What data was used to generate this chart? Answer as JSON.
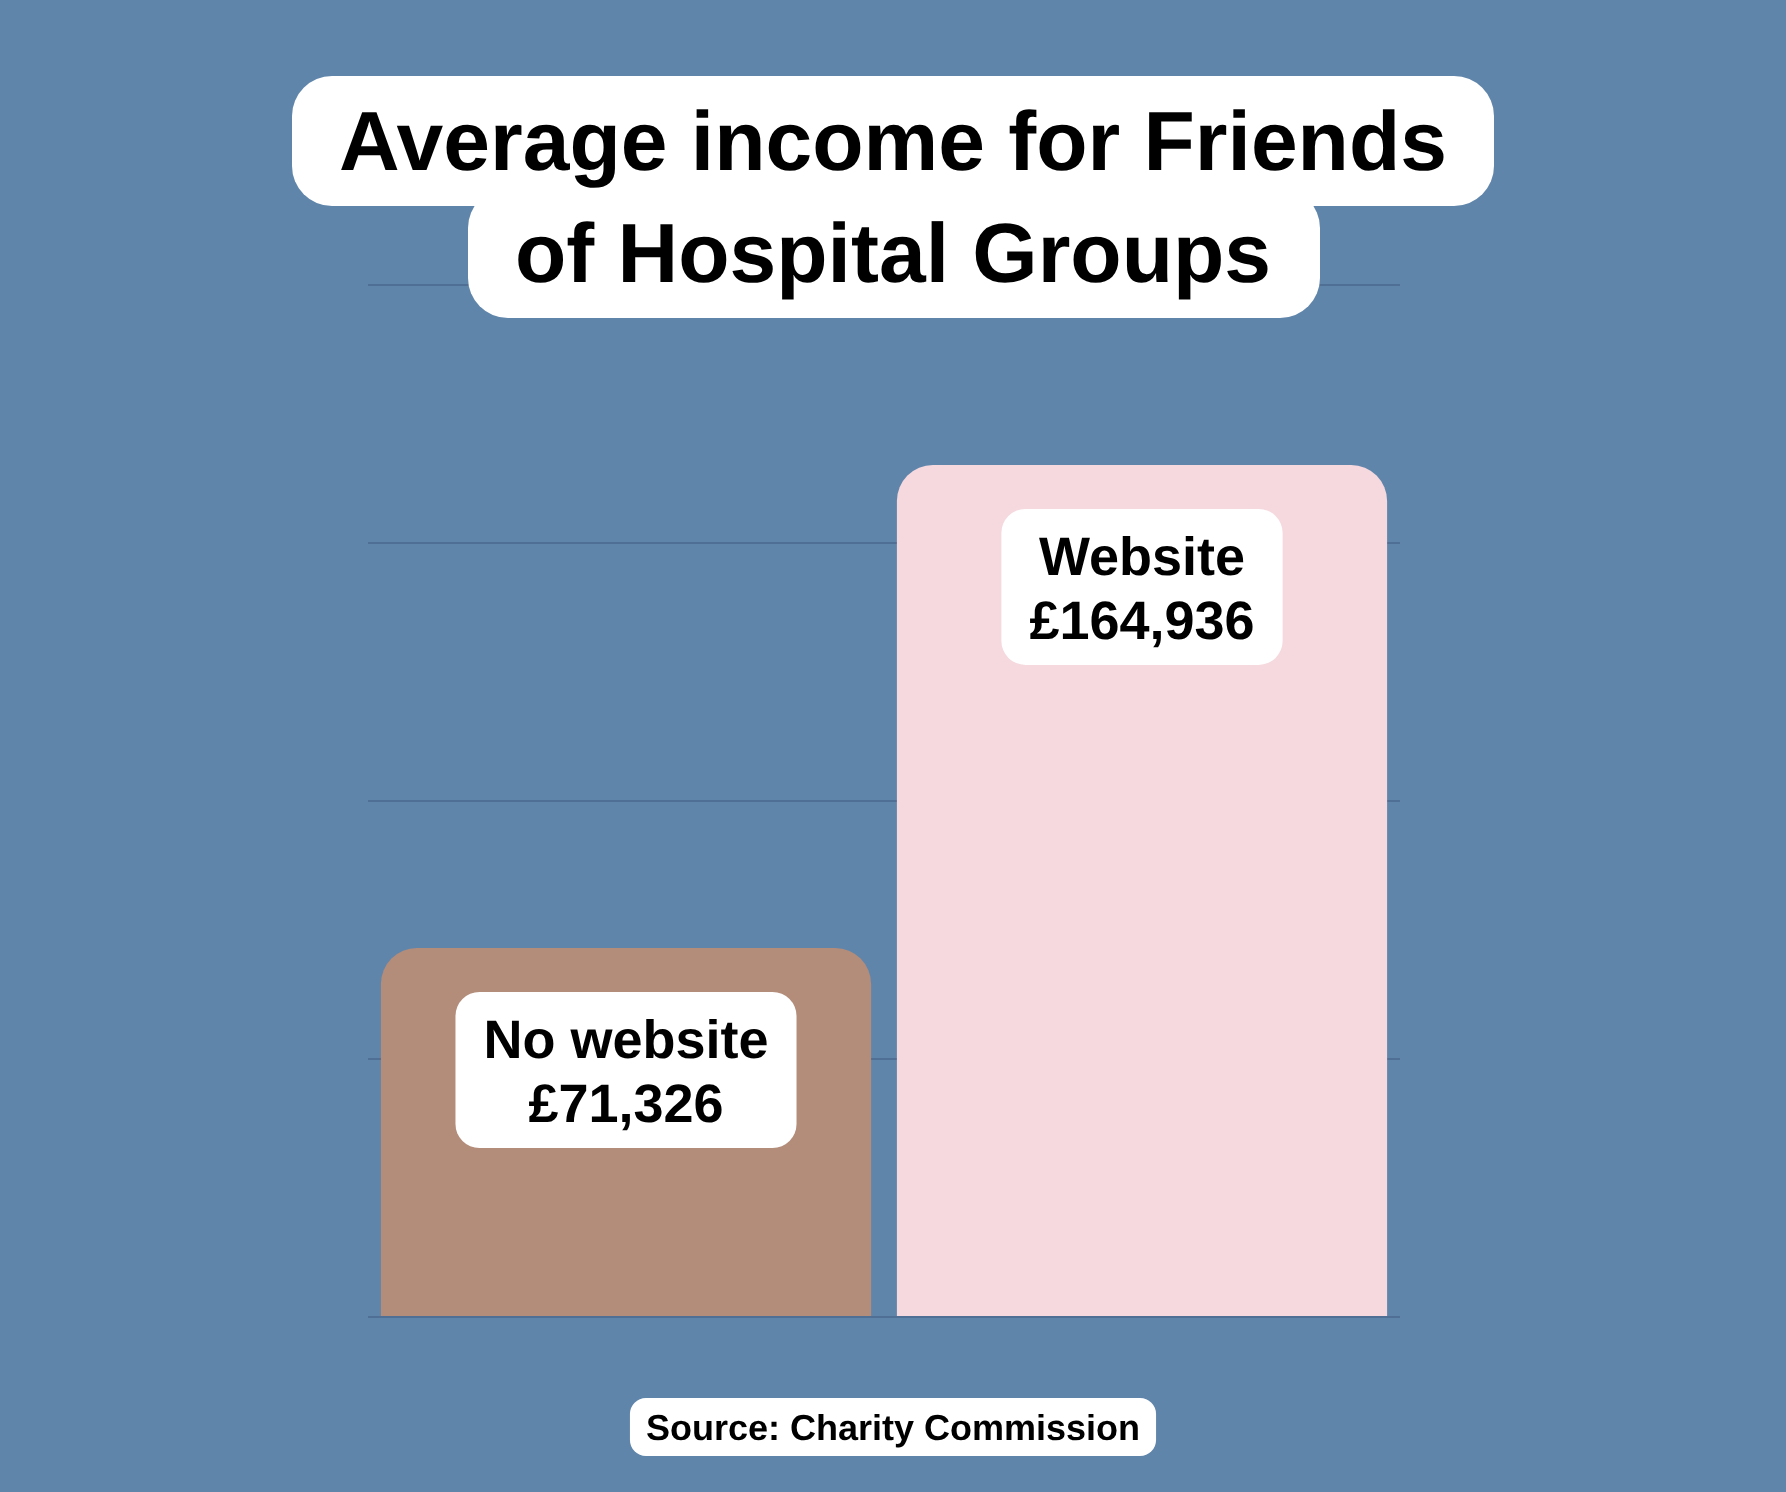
{
  "chart_data": {
    "type": "bar",
    "title": "Average income for Friends of Hospital Groups",
    "categories": [
      "No website",
      "Website"
    ],
    "values": [
      71326,
      164936
    ],
    "colors": [
      "#b38c7a",
      "#f5d9de"
    ],
    "value_labels": [
      "£71,326",
      "£164,936"
    ],
    "ylim": [
      0,
      200000
    ],
    "yticks": [
      {
        "value": 0,
        "label": null
      },
      {
        "value": 50000,
        "label": null
      },
      {
        "value": 100000,
        "label": null
      },
      {
        "value": 150000,
        "label": null
      },
      {
        "value": 200000,
        "label": null
      }
    ],
    "grid": "y",
    "annotations": [
      "Source: Charity Commission"
    ]
  }
}
